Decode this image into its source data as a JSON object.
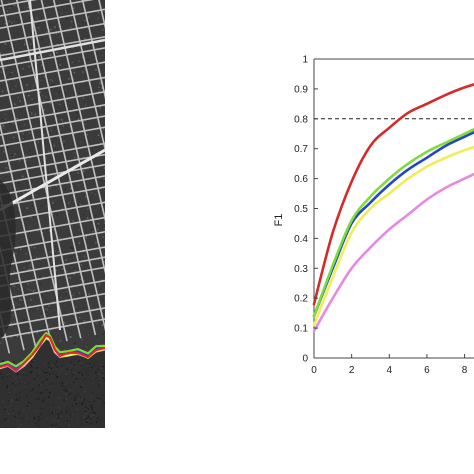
{
  "chart_data": {
    "type": "line",
    "xlabel": "",
    "ylabel": "F1",
    "xlim": [
      0,
      8.5
    ],
    "ylim": [
      0,
      1
    ],
    "x_ticks": [
      "0",
      "2",
      "4",
      "6",
      "8"
    ],
    "y_ticks": [
      "0",
      "0.1",
      "0.2",
      "0.3",
      "0.4",
      "0.5",
      "0.6",
      "0.7",
      "0.8",
      "0.9",
      "1"
    ],
    "reference_line": {
      "y": 0.8,
      "style": "dashed",
      "color": "#222222"
    },
    "grid": false,
    "series": [
      {
        "color": "#d62a2a",
        "x": [
          0,
          1,
          2,
          3,
          4,
          5,
          6,
          7,
          8,
          8.5
        ],
        "values": [
          0.18,
          0.42,
          0.59,
          0.71,
          0.77,
          0.82,
          0.85,
          0.88,
          0.905,
          0.915
        ]
      },
      {
        "color": "#7fdc3a",
        "x": [
          0,
          1,
          2,
          3,
          4,
          5,
          6,
          7,
          8,
          8.5
        ],
        "values": [
          0.14,
          0.31,
          0.46,
          0.54,
          0.6,
          0.65,
          0.69,
          0.72,
          0.75,
          0.765
        ]
      },
      {
        "color": "#2346c8",
        "x": [
          0,
          1,
          2,
          3,
          4,
          5,
          6,
          7,
          8,
          8.5
        ],
        "values": [
          0.14,
          0.3,
          0.45,
          0.52,
          0.58,
          0.63,
          0.67,
          0.71,
          0.74,
          0.755
        ]
      },
      {
        "color": "#eeee55",
        "x": [
          0,
          1,
          2,
          3,
          4,
          5,
          6,
          7,
          8,
          8.5
        ],
        "values": [
          0.11,
          0.27,
          0.42,
          0.5,
          0.55,
          0.6,
          0.64,
          0.67,
          0.695,
          0.705
        ]
      },
      {
        "color": "#e58ae0",
        "x": [
          0,
          1,
          2,
          3,
          4,
          5,
          6,
          7,
          8,
          8.5
        ],
        "values": [
          0.09,
          0.2,
          0.3,
          0.37,
          0.43,
          0.48,
          0.53,
          0.57,
          0.6,
          0.615
        ]
      }
    ]
  },
  "image_panel": {
    "subject": "grayscale satellite image with road network and coastline boundary overlays",
    "overlay_colors": [
      "#d62a2a",
      "#7fdc3a",
      "#2346c8",
      "#eeee55",
      "#e58ae0"
    ]
  }
}
